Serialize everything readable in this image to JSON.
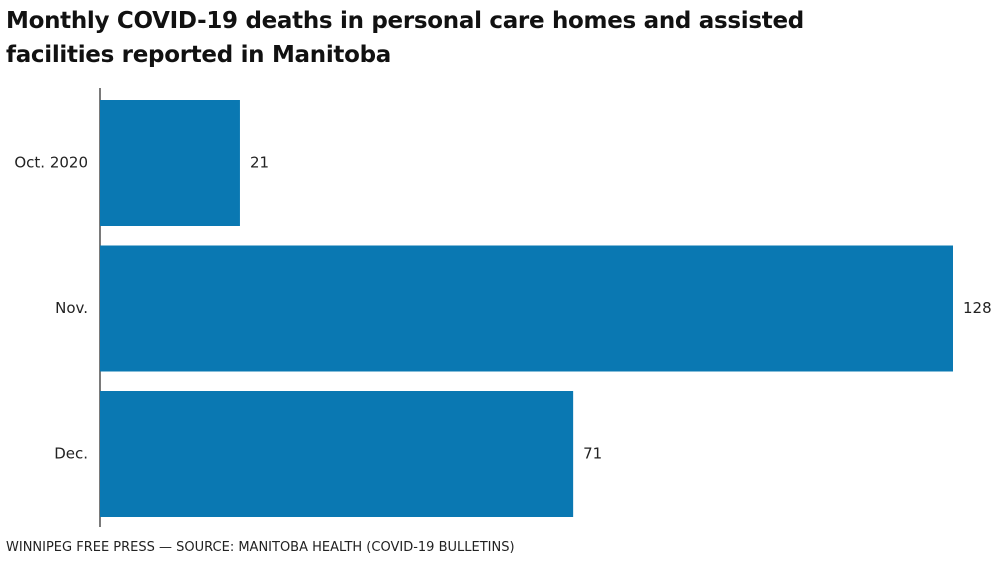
{
  "chart_data": {
    "type": "bar",
    "orientation": "horizontal",
    "title": "Monthly COVID-19 deaths in personal care homes and assisted facilities reported in Manitoba",
    "source": "WINNIPEG FREE PRESS — SOURCE: MANITOBA HEALTH (COVID-19 BULLETINS)",
    "categories": [
      "Oct. 2020",
      "Nov.",
      "Dec."
    ],
    "values": [
      21,
      128,
      71
    ],
    "color": "#0a78b2"
  }
}
